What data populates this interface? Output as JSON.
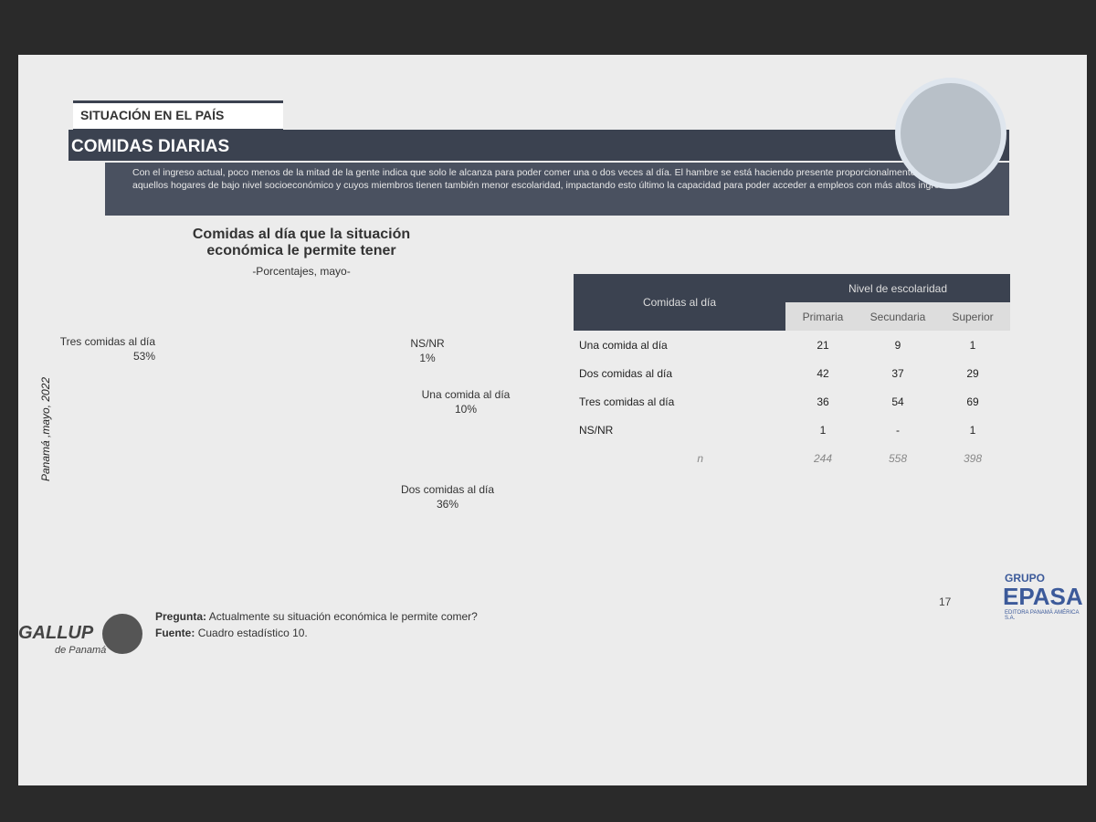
{
  "header": {
    "section": "SITUACIÓN EN EL PAÍS",
    "title": "COMIDAS DIARIAS",
    "intro": "Con el ingreso actual, poco menos de la mitad de la gente indica que solo le alcanza para poder comer una o dos veces al día. El hambre se está haciendo presente proporcionalmente más en aquellos hogares de bajo nivel socioeconómico y cuyos miembros tienen también menor escolaridad, impactando esto último la capacidad para poder acceder a empleos con más altos ingresos."
  },
  "side_label": "Panamá ,mayo, 2022",
  "chart_data": {
    "type": "donut",
    "title": "Comidas al día que la situación económica le permite tener",
    "subtitle": "-Porcentajes, mayo-",
    "categories": [
      "Tres comidas al día",
      "NS/NR",
      "Una comida al día",
      "Dos comidas al día"
    ],
    "values": [
      53,
      1,
      10,
      36
    ],
    "value_labels": [
      "53%",
      "1%",
      "10%",
      "36%"
    ],
    "colors": [
      "#a9c5de",
      "#7d8894",
      "#8f2c31",
      "#c9474c"
    ]
  },
  "table": {
    "corner": "Comidas al día",
    "group": "Nivel de escolaridad",
    "columns": [
      "Primaria",
      "Secundaria",
      "Superior"
    ],
    "rows": [
      [
        "Una comida al día",
        21,
        9,
        1
      ],
      [
        "Dos comidas al día",
        42,
        37,
        29
      ],
      [
        "Tres comidas al día",
        36,
        54,
        69
      ],
      [
        "NS/NR",
        1,
        "-",
        1
      ]
    ],
    "n_label": "n",
    "n": [
      244,
      558,
      398
    ]
  },
  "footer": {
    "question_label": "Pregunta:",
    "question": "Actualmente su situación económica le permite comer?",
    "source_label": "Fuente:",
    "source": "Cuadro estadístico 10.",
    "page": "17",
    "logo_left": "GALLUP",
    "logo_left_sub": "de Panamá",
    "logo_right_top": "GRUPO",
    "logo_right": "EPASA",
    "logo_right_sub": "EDITORA PANAMÁ AMÉRICA S.A."
  }
}
